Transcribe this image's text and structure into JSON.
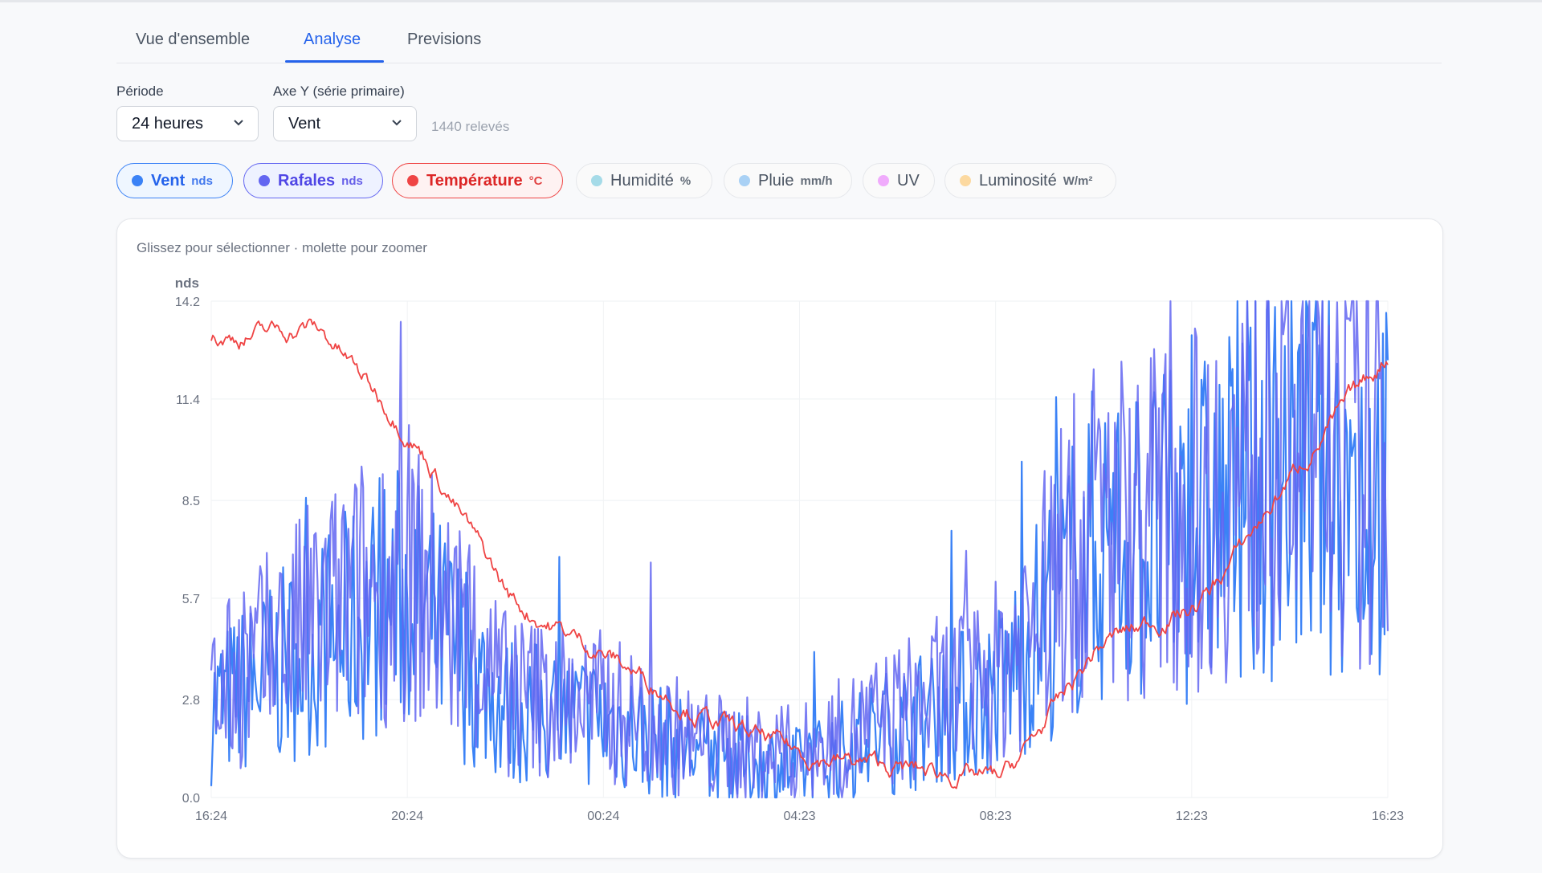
{
  "tabs": [
    {
      "label": "Vue d'ensemble",
      "active": false
    },
    {
      "label": "Analyse",
      "active": true
    },
    {
      "label": "Previsions",
      "active": false
    }
  ],
  "controls": {
    "period_label": "Période",
    "period_value": "24 heures",
    "yaxis_label": "Axe Y (série primaire)",
    "yaxis_value": "Vent",
    "count_text": "1440 relevés"
  },
  "series_chips": [
    {
      "label": "Vent",
      "unit": "nds",
      "color": "#3b82f6",
      "active": true
    },
    {
      "label": "Rafales",
      "unit": "nds",
      "color": "#6366f1",
      "active": true
    },
    {
      "label": "Température",
      "unit": "°C",
      "color": "#ef4444",
      "active": true
    },
    {
      "label": "Humidité",
      "unit": "%",
      "color": "#a5dbe8",
      "active": false
    },
    {
      "label": "Pluie",
      "unit": "mm/h",
      "color": "#a9d1f5",
      "active": false
    },
    {
      "label": "UV",
      "unit": "",
      "color": "#f0abfc",
      "active": false
    },
    {
      "label": "Luminosité",
      "unit": "W/m²",
      "color": "#fcd9a0",
      "active": false
    }
  ],
  "hint": "Glissez pour sélectionner · molette pour zoomer",
  "chart_data": {
    "type": "line",
    "ylabel": "nds",
    "ylim": [
      0,
      14.2
    ],
    "yticks": [
      "14.2",
      "11.4",
      "8.5",
      "5.7",
      "2.8",
      "0.0"
    ],
    "ytick_values": [
      14.2,
      11.4,
      8.5,
      5.7,
      2.8,
      0.0
    ],
    "xticks": [
      "16:24",
      "20:24",
      "00:24",
      "04:23",
      "08:23",
      "12:23",
      "16:23"
    ],
    "x_hours": [
      0,
      2,
      4,
      6,
      8,
      10,
      12,
      14,
      16,
      18,
      20,
      22,
      24
    ],
    "grid": true,
    "series": [
      {
        "name": "Vent",
        "color": "#3b82f6",
        "values": [
          2.5,
          4.2,
          5.8,
          2.5,
          2.2,
          1.2,
          0.8,
          2.0,
          3.0,
          7.2,
          7.5,
          9.5,
          8.7
        ]
      },
      {
        "name": "Rafales",
        "color": "#6366f1",
        "values": [
          2.8,
          5.0,
          6.5,
          3.0,
          2.6,
          1.5,
          1.2,
          2.4,
          3.5,
          7.8,
          8.2,
          10.2,
          9.3
        ]
      },
      {
        "name": "Température",
        "color": "#ef4444",
        "values": [
          13.1,
          13.5,
          10.2,
          5.5,
          4.0,
          2.2,
          1.2,
          0.8,
          0.5,
          4.5,
          5.5,
          9.5,
          13.0
        ]
      }
    ]
  }
}
